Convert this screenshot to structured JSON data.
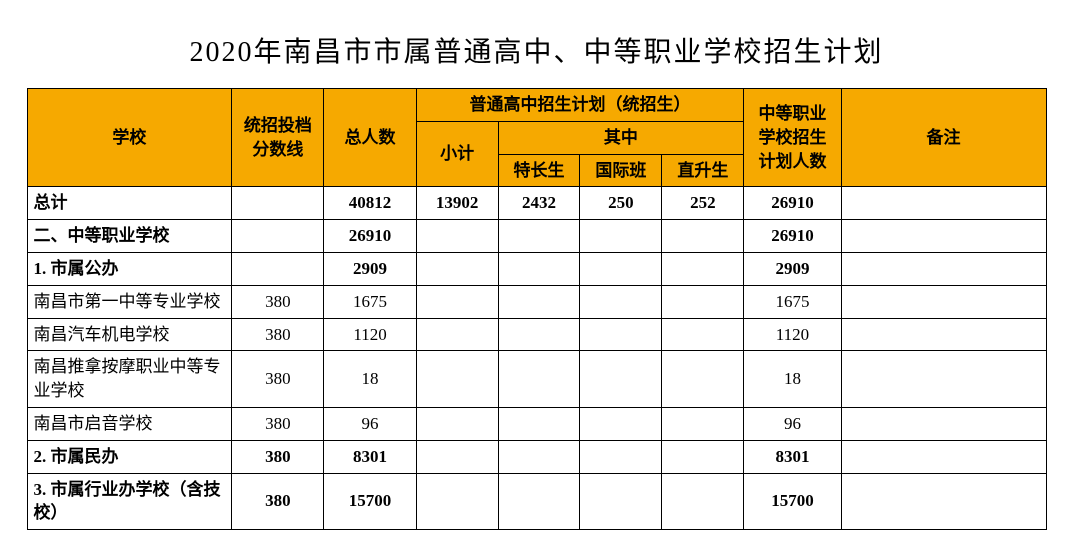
{
  "title": "2020年南昌市市属普通高中、中等职业学校招生计划",
  "header": {
    "school": "学校",
    "score": "统招投档分数线",
    "total": "总人数",
    "gaozhong_group": "普通高中招生计划（统招生）",
    "subtotal": "小计",
    "qizhong": "其中",
    "tcs": "特长生",
    "gjb": "国际班",
    "zss": "直升生",
    "voc": "中等职业学校招生计划人数",
    "note": "备注"
  },
  "colors": {
    "header_bg": "#f6a900",
    "border": "#000000",
    "text": "#000000",
    "bg": "#ffffff"
  },
  "rows": [
    {
      "school": "总计",
      "score": "",
      "total": "40812",
      "sub": "13902",
      "tcs": "2432",
      "gjb": "250",
      "zss": "252",
      "voc": "26910",
      "note": "",
      "bold": true
    },
    {
      "school": "二、中等职业学校",
      "score": "",
      "total": "26910",
      "sub": "",
      "tcs": "",
      "gjb": "",
      "zss": "",
      "voc": "26910",
      "note": "",
      "bold": true
    },
    {
      "school": "1. 市属公办",
      "score": "",
      "total": "2909",
      "sub": "",
      "tcs": "",
      "gjb": "",
      "zss": "",
      "voc": "2909",
      "note": "",
      "bold": true
    },
    {
      "school": "南昌市第一中等专业学校",
      "score": "380",
      "total": "1675",
      "sub": "",
      "tcs": "",
      "gjb": "",
      "zss": "",
      "voc": "1675",
      "note": "",
      "bold": false
    },
    {
      "school": "南昌汽车机电学校",
      "score": "380",
      "total": "1120",
      "sub": "",
      "tcs": "",
      "gjb": "",
      "zss": "",
      "voc": "1120",
      "note": "",
      "bold": false
    },
    {
      "school": "南昌推拿按摩职业中等专业学校",
      "score": "380",
      "total": "18",
      "sub": "",
      "tcs": "",
      "gjb": "",
      "zss": "",
      "voc": "18",
      "note": "",
      "bold": false
    },
    {
      "school": "南昌市启音学校",
      "score": "380",
      "total": "96",
      "sub": "",
      "tcs": "",
      "gjb": "",
      "zss": "",
      "voc": "96",
      "note": "",
      "bold": false
    },
    {
      "school": "2. 市属民办",
      "score": "380",
      "total": "8301",
      "sub": "",
      "tcs": "",
      "gjb": "",
      "zss": "",
      "voc": "8301",
      "note": "",
      "bold": true
    },
    {
      "school": "3. 市属行业办学校（含技校）",
      "score": "380",
      "total": "15700",
      "sub": "",
      "tcs": "",
      "gjb": "",
      "zss": "",
      "voc": "15700",
      "note": "",
      "bold": true
    }
  ]
}
